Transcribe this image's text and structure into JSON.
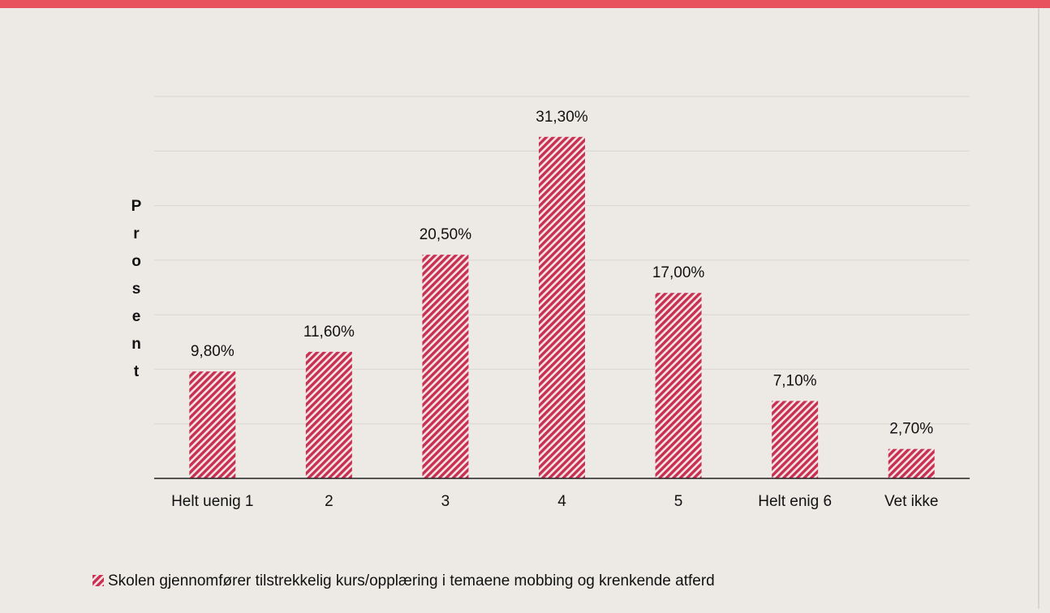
{
  "chart_data": {
    "type": "bar",
    "y_label": "Prosent",
    "categories": [
      "Helt uenig 1",
      "2",
      "3",
      "4",
      "5",
      "Helt enig 6",
      "Vet ikke"
    ],
    "series": [
      {
        "name": "Skolen gjennomfører tilstrekkelig kurs/opplæring i temaene mobbing og krenkende atferd",
        "color": "#c8304f",
        "values": [
          9.8,
          11.6,
          20.5,
          31.3,
          17.0,
          7.1,
          2.7
        ],
        "value_labels": [
          "9,80%",
          "11,60%",
          "20,50%",
          "31,30%",
          "17,00%",
          "7,10%",
          "2,70%"
        ]
      }
    ],
    "ylim": [
      0,
      35
    ],
    "yticks": [
      0,
      5,
      10,
      15,
      20,
      25,
      30,
      35
    ],
    "grid": true,
    "legend": "bottom"
  }
}
